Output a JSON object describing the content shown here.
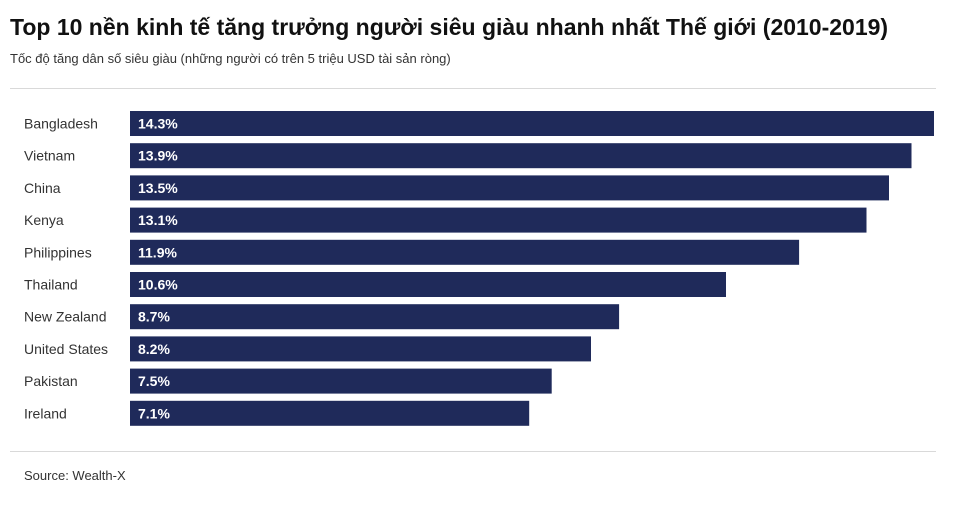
{
  "title": "Top 10 nền kinh tế tăng trưởng người siêu giàu nhanh nhất Thế giới (2010-2019)",
  "subtitle": "Tốc độ tăng dân số siêu giàu (những người có trên 5 triệu USD tài sản ròng)",
  "source": "Source: Wealth-X",
  "colors": {
    "bar": "#1f2a5a",
    "label": "#ffffff",
    "category_text": "#333333"
  },
  "chart_data": {
    "type": "bar",
    "orientation": "horizontal",
    "categories": [
      "Bangladesh",
      "Vietnam",
      "China",
      "Kenya",
      "Philippines",
      "Thailand",
      "New Zealand",
      "United States",
      "Pakistan",
      "Ireland"
    ],
    "values": [
      14.3,
      13.9,
      13.5,
      13.1,
      11.9,
      10.6,
      8.7,
      8.2,
      7.5,
      7.1
    ],
    "value_labels": [
      "14.3%",
      "13.9%",
      "13.5%",
      "13.1%",
      "11.9%",
      "10.6%",
      "8.7%",
      "8.2%",
      "7.5%",
      "7.1%"
    ],
    "title": "Top 10 nền kinh tế tăng trưởng người siêu giàu nhanh nhất Thế giới (2010-2019)",
    "xlabel": "",
    "ylabel": "",
    "grid": false,
    "legend": "none"
  }
}
